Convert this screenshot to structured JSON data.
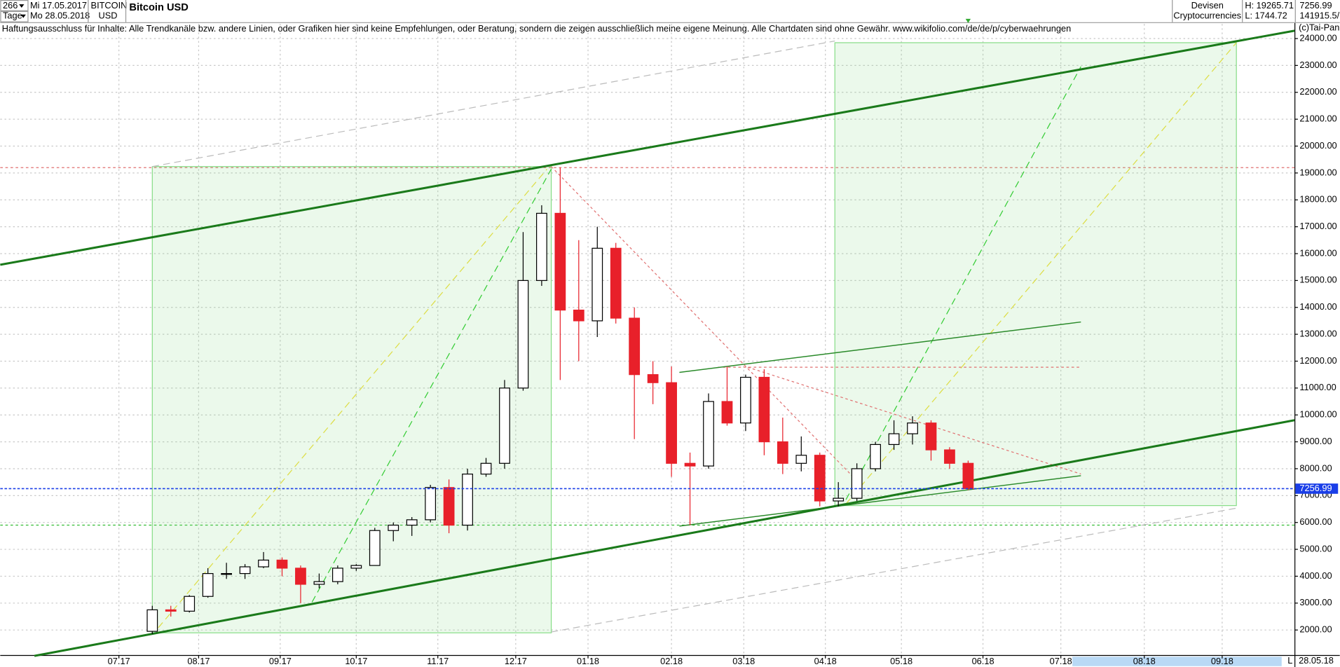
{
  "header": {
    "bars": "266",
    "from": "Mi 17.05.2017",
    "period": "Tage",
    "to": "Mo 28.05.2018",
    "symbol": "BITCOIN",
    "currency": "USD",
    "name": "Bitcoin USD",
    "group": "Devisen",
    "market": "Cryptocurrencies",
    "high": "H: 19265.71",
    "low": "L: 1744.72",
    "last": "7256.99",
    "volume": "141915.5/",
    "disclaimer": "Haftungsausschluss für Inhalte: Alle Trendkanäle bzw. andere Linien, oder Grafiken hier sind keine Empfehlungen, oder Beratung, sondern die zeigen ausschließlich meine eigene Meinung. Alle Chartdaten sind ohne Gewähr.  www.wikifolio.com/de/de/p/cyberwaehrungen",
    "copyright": "(c)Tai-Pan",
    "date": "28.05.18",
    "scale_mode": "L"
  },
  "chart_data": {
    "type": "candlestick",
    "title": "Bitcoin USD",
    "up_color": "#ffffff",
    "down_color": "#e8202a",
    "wick_color": "#000000",
    "xlim": [
      -8.2,
      61.6
    ],
    "ylim": [
      1100,
      24100
    ],
    "xticks": [
      {
        "value": -1.8,
        "label": "07.17"
      },
      {
        "value": 2.5,
        "label": "08.17"
      },
      {
        "value": 6.9,
        "label": "09.17"
      },
      {
        "value": 11,
        "label": "10.17"
      },
      {
        "value": 15.4,
        "label": "11.17"
      },
      {
        "value": 19.6,
        "label": "12.17"
      },
      {
        "value": 23.5,
        "label": "01.18"
      },
      {
        "value": 28,
        "label": "02.18"
      },
      {
        "value": 31.9,
        "label": "03.18"
      },
      {
        "value": 36.3,
        "label": "04.18"
      },
      {
        "value": 40.4,
        "label": "05.18"
      },
      {
        "value": 44.8,
        "label": "06.18"
      },
      {
        "value": 49,
        "label": "07.18"
      },
      {
        "value": 53.5,
        "label": "08.18"
      },
      {
        "value": 57.7,
        "label": "09.18"
      }
    ],
    "yticks": [
      {
        "value": 2000,
        "label": "2000.00"
      },
      {
        "value": 3000,
        "label": "3000.00"
      },
      {
        "value": 4000,
        "label": "4000.00"
      },
      {
        "value": 5000,
        "label": "5000.00"
      },
      {
        "value": 6000,
        "label": "6000.00"
      },
      {
        "value": 7000,
        "label": "7000.00"
      },
      {
        "value": 8000,
        "label": "8000.00"
      },
      {
        "value": 9000,
        "label": "9000.00"
      },
      {
        "value": 10000,
        "label": "10000.00"
      },
      {
        "value": 11000,
        "label": "11000.00"
      },
      {
        "value": 12000,
        "label": "12000.00"
      },
      {
        "value": 13000,
        "label": "13000.00"
      },
      {
        "value": 14000,
        "label": "14000.00"
      },
      {
        "value": 15000,
        "label": "15000.00"
      },
      {
        "value": 16000,
        "label": "16000.00"
      },
      {
        "value": 17000,
        "label": "17000.00"
      },
      {
        "value": 18000,
        "label": "18000.00"
      },
      {
        "value": 19000,
        "label": "19000.00"
      },
      {
        "value": 20000,
        "label": "20000.00"
      },
      {
        "value": 21000,
        "label": "21000.00"
      },
      {
        "value": 22000,
        "label": "22000.00"
      },
      {
        "value": 23000,
        "label": "23000.00"
      },
      {
        "value": 24000,
        "label": "24000.00"
      }
    ],
    "grid": true,
    "open": [
      1950,
      2750,
      2700,
      3250,
      4100,
      4100,
      4350,
      4600,
      4300,
      3700,
      3800,
      4300,
      4400,
      5700,
      5900,
      6100,
      7300,
      5900,
      7800,
      8200,
      11000,
      15000,
      17500,
      13900,
      13500,
      16200,
      13600,
      11500,
      11200,
      8200,
      8100,
      10500,
      9700,
      11400,
      9000,
      8200,
      8500,
      6800,
      6900,
      8000,
      8900,
      9300,
      9700,
      8700,
      8200
    ],
    "high": [
      2900,
      2900,
      3300,
      4300,
      4500,
      4450,
      4900,
      4700,
      4400,
      4100,
      4400,
      4450,
      5800,
      6000,
      6200,
      7400,
      7600,
      8000,
      8400,
      11300,
      16800,
      17800,
      19200,
      16500,
      17000,
      16400,
      14000,
      12000,
      11800,
      8600,
      10800,
      11800,
      11500,
      11700,
      9900,
      9200,
      8600,
      7500,
      8200,
      9000,
      9800,
      9950,
      9800,
      8800,
      8300
    ],
    "low": [
      1850,
      2500,
      2650,
      3200,
      3900,
      3900,
      4300,
      4000,
      3000,
      3550,
      3700,
      4200,
      4400,
      5300,
      5500,
      6000,
      5600,
      5700,
      7700,
      8000,
      10900,
      14800,
      11300,
      12000,
      12900,
      13400,
      9100,
      10400,
      7700,
      5900,
      8000,
      9600,
      9400,
      8500,
      7800,
      7900,
      6600,
      6600,
      6800,
      7900,
      8700,
      8900,
      8300,
      8000,
      7200
    ],
    "close": [
      2750,
      2700,
      3250,
      4100,
      4100,
      4350,
      4600,
      4300,
      3700,
      3800,
      4300,
      4400,
      5700,
      5900,
      6100,
      7300,
      5900,
      7800,
      8200,
      11000,
      15000,
      17500,
      13900,
      13500,
      16200,
      13600,
      11500,
      11200,
      8200,
      8100,
      10500,
      9700,
      11400,
      9000,
      8200,
      8500,
      6800,
      6900,
      8000,
      8900,
      9300,
      9700,
      8700,
      8200,
      7256.99
    ],
    "last": {
      "value": 7256.99,
      "label": "7256.99",
      "color": "#1a3ee8"
    },
    "hlines": [
      {
        "value": 19200,
        "color": "#e07070"
      },
      {
        "value": 5900,
        "color": "#33bb33"
      }
    ]
  }
}
